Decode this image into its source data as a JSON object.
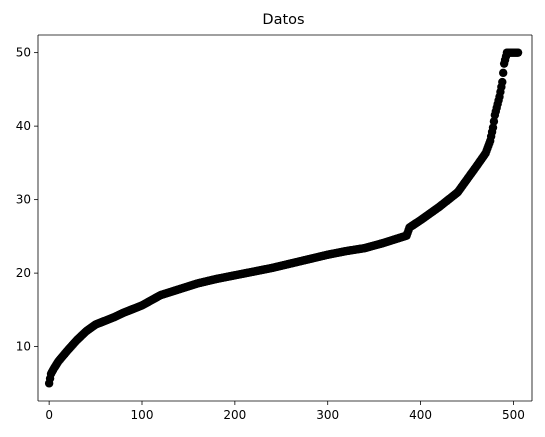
{
  "chart_data": {
    "type": "scatter",
    "title": "Datos",
    "xlabel": "",
    "ylabel": "",
    "xlim": [
      -12,
      520
    ],
    "ylim": [
      2.6,
      52.4
    ],
    "x_ticks": [
      0,
      100,
      200,
      300,
      400,
      500
    ],
    "y_ticks": [
      10,
      20,
      30,
      40,
      50
    ],
    "grid": false,
    "marker": "circle",
    "marker_color": "#000000",
    "n_points": 506,
    "curve_anchors": {
      "x": [
        0,
        2,
        5,
        10,
        20,
        30,
        40,
        50,
        60,
        70,
        80,
        90,
        100,
        120,
        140,
        160,
        180,
        200,
        220,
        240,
        260,
        280,
        300,
        320,
        340,
        360,
        380,
        385,
        388,
        400,
        420,
        440,
        460,
        470,
        475,
        478,
        480,
        485,
        488,
        490,
        493,
        495,
        497,
        500,
        505
      ],
      "y": [
        5.0,
        6.3,
        7.0,
        8.0,
        9.5,
        10.9,
        12.1,
        13.0,
        13.5,
        14.0,
        14.6,
        15.1,
        15.6,
        17.0,
        17.8,
        18.6,
        19.2,
        19.7,
        20.2,
        20.7,
        21.3,
        21.9,
        22.5,
        23.0,
        23.4,
        24.1,
        24.9,
        25.1,
        26.2,
        27.2,
        29.0,
        31.0,
        34.5,
        36.3,
        38.0,
        39.8,
        41.5,
        44.0,
        46.0,
        48.5,
        50.0,
        50.0,
        50.0,
        50.0,
        50.0
      ]
    }
  }
}
